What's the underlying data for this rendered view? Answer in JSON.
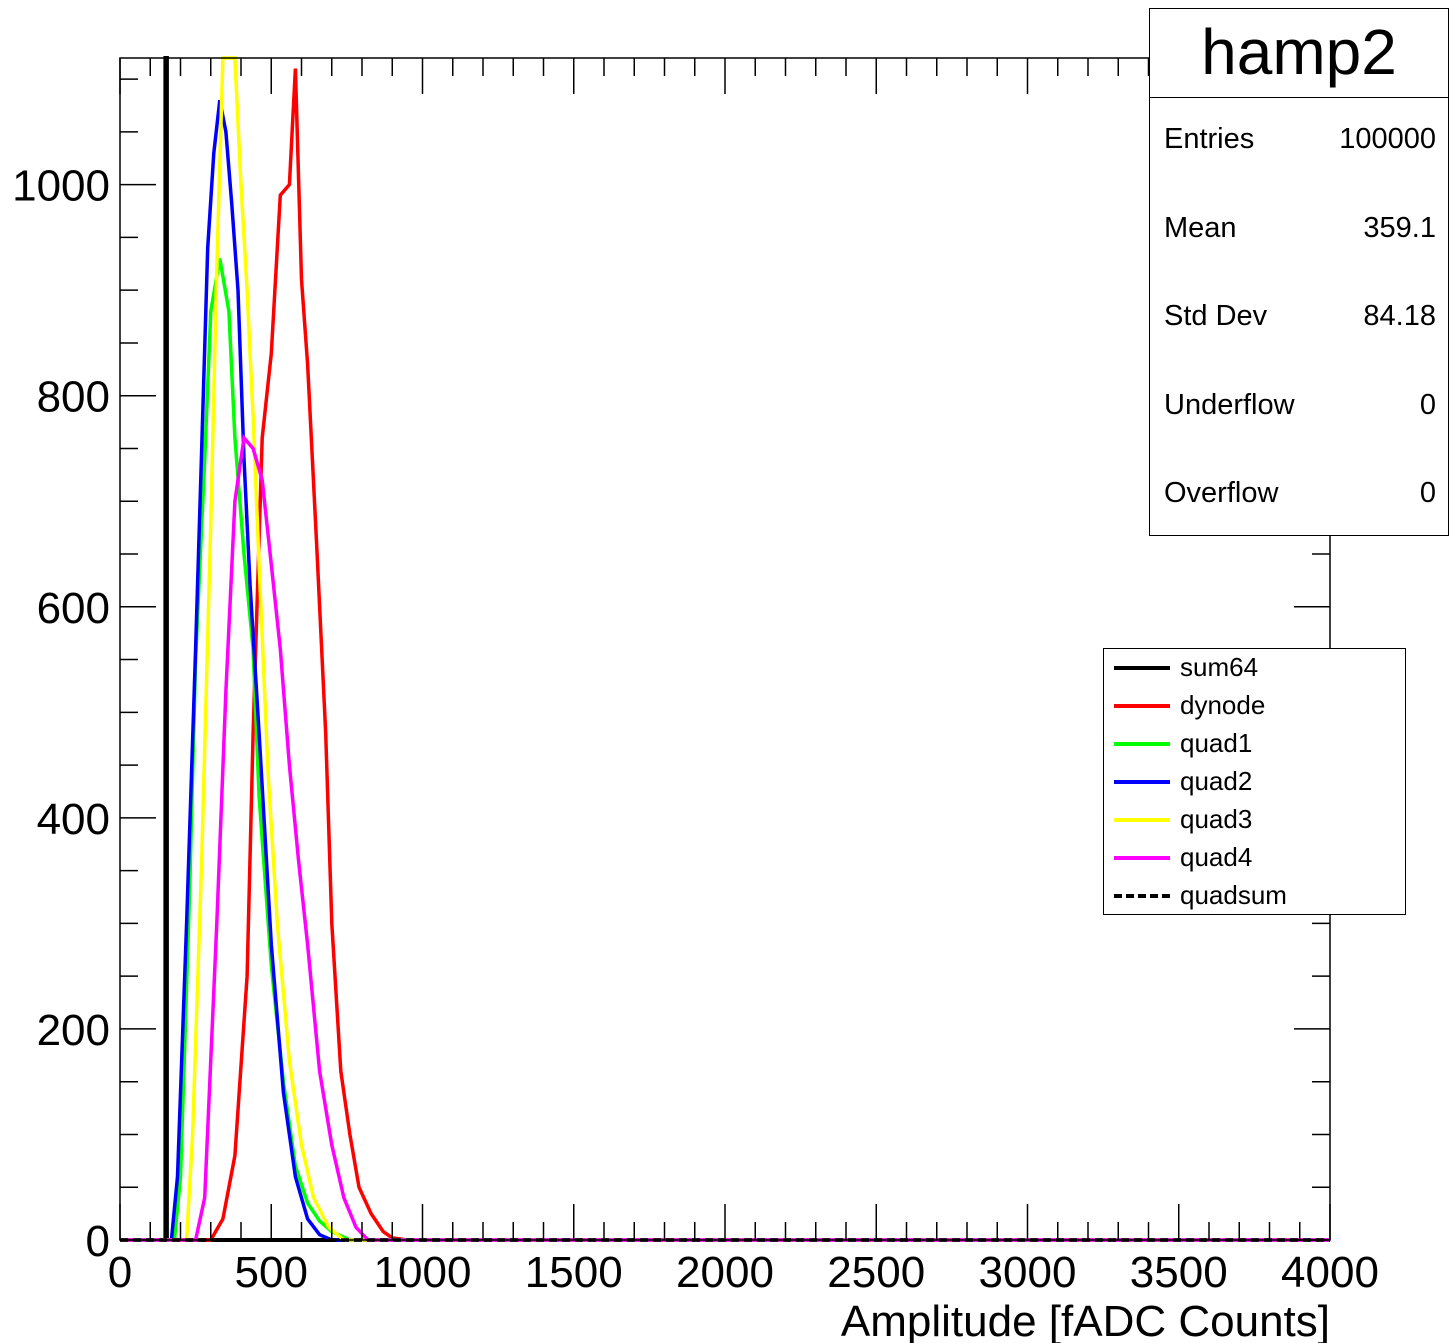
{
  "chart_data": {
    "type": "line",
    "title": "hamp2",
    "xlabel": "Amplitude [fADC Counts]",
    "ylabel": "",
    "xlim": [
      0,
      4000
    ],
    "ylim": [
      0,
      1120
    ],
    "xticks": [
      0,
      500,
      1000,
      1500,
      2000,
      2500,
      3000,
      3500,
      4000
    ],
    "yticks": [
      0,
      200,
      400,
      600,
      800,
      1000
    ],
    "grid": false,
    "legend_position": "right",
    "stats": {
      "title": "hamp2",
      "rows": [
        {
          "key": "Entries",
          "value": "100000"
        },
        {
          "key": "Mean",
          "value": "359.1"
        },
        {
          "key": "Std Dev",
          "value": "84.18"
        },
        {
          "key": "Underflow",
          "value": "0"
        },
        {
          "key": "Overflow",
          "value": "0"
        }
      ]
    },
    "series": [
      {
        "name": "sum64",
        "color": "#000000",
        "dashed": false,
        "x": [
          0,
          150,
          150,
          155,
          155,
          4000
        ],
        "y": [
          0,
          0,
          1120,
          1120,
          0,
          0
        ]
      },
      {
        "name": "dynode",
        "color": "#ff0000",
        "dashed": false,
        "x": [
          0,
          300,
          340,
          380,
          420,
          440,
          470,
          500,
          530,
          560,
          580,
          600,
          620,
          650,
          680,
          700,
          730,
          760,
          790,
          830,
          870,
          900,
          950,
          4000
        ],
        "y": [
          0,
          0,
          20,
          80,
          250,
          480,
          760,
          840,
          990,
          1000,
          1110,
          910,
          830,
          660,
          480,
          300,
          160,
          100,
          50,
          25,
          8,
          2,
          0,
          0
        ]
      },
      {
        "name": "quad1",
        "color": "#00ff00",
        "dashed": false,
        "x": [
          0,
          180,
          200,
          230,
          250,
          280,
          300,
          330,
          360,
          380,
          410,
          440,
          460,
          500,
          540,
          580,
          620,
          660,
          700,
          760,
          4000
        ],
        "y": [
          0,
          0,
          60,
          330,
          550,
          740,
          880,
          930,
          880,
          760,
          650,
          560,
          420,
          260,
          150,
          70,
          35,
          18,
          8,
          0,
          0
        ]
      },
      {
        "name": "quad2",
        "color": "#0000ff",
        "dashed": false,
        "x": [
          0,
          170,
          190,
          220,
          250,
          270,
          290,
          310,
          330,
          350,
          370,
          390,
          410,
          430,
          460,
          500,
          540,
          580,
          620,
          660,
          700,
          4000
        ],
        "y": [
          0,
          0,
          60,
          300,
          560,
          750,
          940,
          1030,
          1080,
          1050,
          980,
          900,
          740,
          620,
          480,
          280,
          140,
          60,
          20,
          5,
          0,
          0
        ]
      },
      {
        "name": "quad3",
        "color": "#ffff00",
        "dashed": false,
        "x": [
          0,
          220,
          240,
          270,
          300,
          320,
          340,
          360,
          380,
          400,
          420,
          440,
          460,
          490,
          520,
          560,
          600,
          640,
          690,
          740,
          4000
        ],
        "y": [
          0,
          0,
          100,
          360,
          680,
          920,
          1120,
          1120,
          1120,
          1000,
          900,
          780,
          640,
          440,
          300,
          170,
          90,
          40,
          12,
          0,
          0
        ]
      },
      {
        "name": "quad4",
        "color": "#ff00ff",
        "dashed": false,
        "x": [
          0,
          250,
          280,
          320,
          350,
          380,
          410,
          440,
          470,
          500,
          530,
          560,
          590,
          620,
          660,
          700,
          740,
          780,
          820,
          4000
        ],
        "y": [
          0,
          0,
          40,
          300,
          520,
          700,
          760,
          750,
          720,
          640,
          560,
          450,
          360,
          280,
          160,
          90,
          40,
          12,
          0,
          0
        ]
      },
      {
        "name": "quadsum",
        "color": "#000000",
        "dashed": true,
        "x": [
          0,
          4000
        ],
        "y": [
          0,
          0
        ]
      }
    ]
  }
}
